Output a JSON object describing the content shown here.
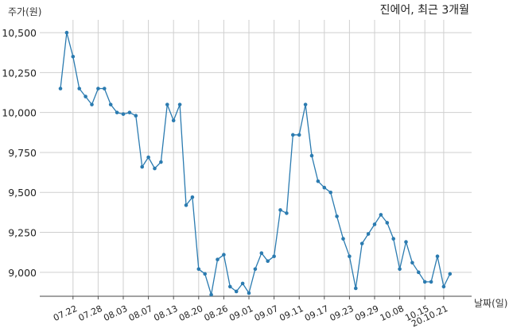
{
  "chart_data": {
    "type": "line",
    "title": "진에어, 최근 3개월",
    "ylabel": "주가(원)",
    "xlabel": "날짜(일)",
    "ylim": [
      8850,
      10580
    ],
    "yticks": [
      9000,
      9250,
      9500,
      9750,
      10000,
      10250,
      10500
    ],
    "ytick_labels": [
      "9,000",
      "9,250",
      "9,500",
      "9,750",
      "10,000",
      "10,250",
      "10,500"
    ],
    "grid": true,
    "line_color": "#2b7bb0",
    "xticks": [
      {
        "index": 2,
        "label": "07.22"
      },
      {
        "index": 6,
        "label": "07.28"
      },
      {
        "index": 10,
        "label": "08.03"
      },
      {
        "index": 14,
        "label": "08.07"
      },
      {
        "index": 18,
        "label": "08.13"
      },
      {
        "index": 22,
        "label": "08.20"
      },
      {
        "index": 26,
        "label": "08.26"
      },
      {
        "index": 30,
        "label": "09.01"
      },
      {
        "index": 34,
        "label": "09.07"
      },
      {
        "index": 38,
        "label": "09.11"
      },
      {
        "index": 42,
        "label": "09.17"
      },
      {
        "index": 46,
        "label": "09.23"
      },
      {
        "index": 50,
        "label": "09.29"
      },
      {
        "index": 54,
        "label": "10.08"
      },
      {
        "index": 58,
        "label": "10.15"
      },
      {
        "index": 61,
        "label": "20.10.21"
      }
    ],
    "values": [
      10150,
      10500,
      10350,
      10150,
      10100,
      10050,
      10150,
      10150,
      10050,
      10000,
      9990,
      10000,
      9980,
      9660,
      9720,
      9650,
      9690,
      10050,
      9950,
      10050,
      9420,
      9470,
      9020,
      8990,
      8860,
      9080,
      9110,
      8910,
      8880,
      8930,
      8870,
      9020,
      9120,
      9070,
      9100,
      9390,
      9370,
      9860,
      9860,
      10050,
      9730,
      9570,
      9530,
      9500,
      9350,
      9210,
      9100,
      8900,
      9180,
      9240,
      9300,
      9360,
      9310,
      9210,
      9020,
      9190,
      9060,
      9000,
      8940,
      8940,
      9100,
      8910,
      8990
    ]
  }
}
